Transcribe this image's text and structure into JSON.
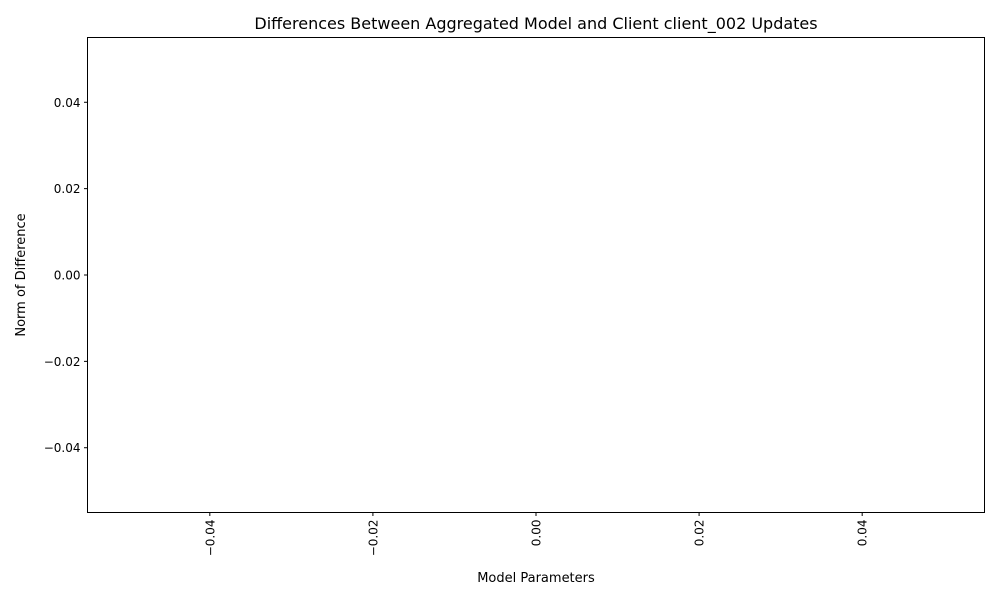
{
  "chart_data": {
    "type": "bar",
    "title": "Differences Between Aggregated Model and Client client_002 Updates",
    "xlabel": "Model Parameters",
    "ylabel": "Norm of Difference",
    "categories": [],
    "values": [],
    "xlim": [
      -0.055,
      0.055
    ],
    "ylim": [
      -0.055,
      0.055
    ],
    "x_ticks": [
      -0.04,
      -0.02,
      0.0,
      0.02,
      0.04
    ],
    "x_tick_labels": [
      "−0.04",
      "−0.02",
      "0.00",
      "0.02",
      "0.04"
    ],
    "x_tick_rotation": "vertical",
    "y_ticks": [
      -0.04,
      -0.02,
      0.0,
      0.02,
      0.04
    ],
    "y_tick_labels": [
      "−0.04",
      "−0.02",
      "0.00",
      "0.02",
      "0.04"
    ],
    "grid": false,
    "legend": "none"
  }
}
